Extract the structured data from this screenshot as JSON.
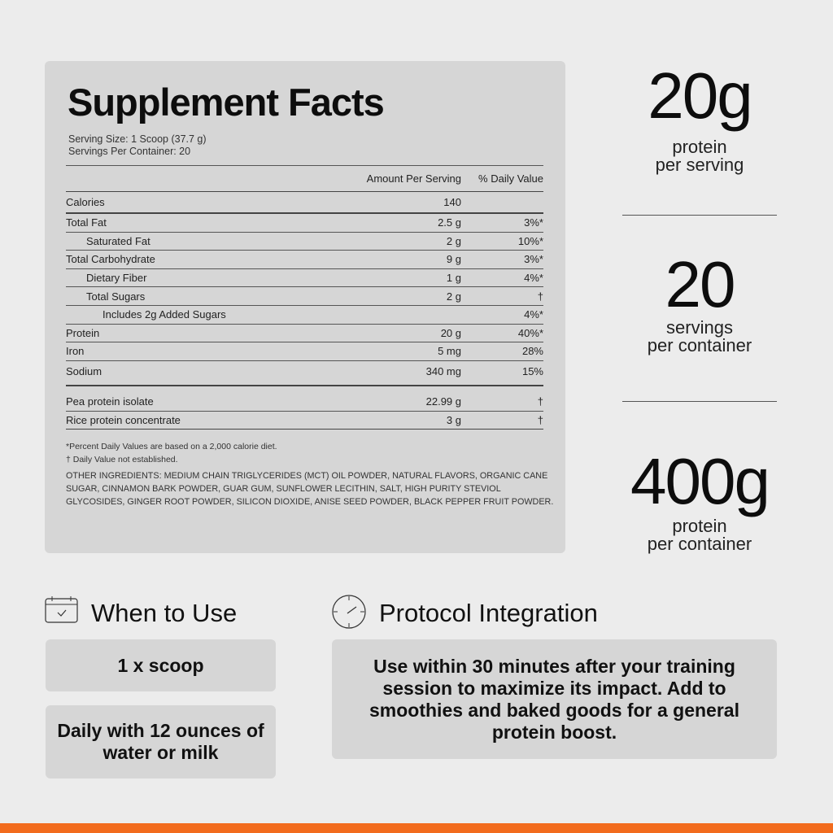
{
  "facts": {
    "title": "Supplement Facts",
    "serving_size": "Serving Size: 1 Scoop (37.7 g)",
    "servings_per_container": "Servings Per Container: 20",
    "col_amount": "Amount Per Serving",
    "col_dv": "% Daily Value",
    "rows": [
      {
        "label": "Calories",
        "amount": "140",
        "dv": ""
      },
      {
        "label": "Total Fat",
        "amount": "2.5 g",
        "dv": "3%*"
      },
      {
        "label": "Saturated Fat",
        "amount": "2 g",
        "dv": "10%*"
      },
      {
        "label": "Total Carbohydrate",
        "amount": "9 g",
        "dv": "3%*"
      },
      {
        "label": "Dietary Fiber",
        "amount": "1 g",
        "dv": "4%*"
      },
      {
        "label": "Total Sugars",
        "amount": "2 g",
        "dv": "†"
      },
      {
        "label": "Includes 2g Added Sugars",
        "amount": "",
        "dv": "4%*"
      },
      {
        "label": "Protein",
        "amount": "20 g",
        "dv": "40%*"
      },
      {
        "label": "Iron",
        "amount": "5 mg",
        "dv": "28%"
      },
      {
        "label": "Sodium",
        "amount": "340 mg",
        "dv": "15%"
      },
      {
        "label": "Pea protein isolate",
        "amount": "22.99 g",
        "dv": "†"
      },
      {
        "label": "Rice protein concentrate",
        "amount": "3 g",
        "dv": "†"
      }
    ],
    "footnote1": "*Percent Daily Values are based on a 2,000 calorie diet.",
    "footnote2": "† Daily Value not established.",
    "other_ingredients": "OTHER INGREDIENTS: MEDIUM CHAIN TRIGLYCERIDES (MCT) OIL POWDER, NATURAL FLAVORS, ORGANIC CANE SUGAR, CINNAMON BARK POWDER, GUAR GUM, SUNFLOWER LECITHIN, SALT, HIGH PURITY STEVIOL GLYCOSIDES, GINGER ROOT POWDER, SILICON DIOXIDE, ANISE SEED POWDER, BLACK PEPPER FRUIT POWDER."
  },
  "stats": [
    {
      "value": "20g",
      "line1": "protein",
      "line2": "per serving"
    },
    {
      "value": "20",
      "line1": "servings",
      "line2": "per container"
    },
    {
      "value": "400g",
      "line1": "protein",
      "line2": "per container"
    }
  ],
  "when": {
    "icon": "calendar-check-icon",
    "title": "When to Use",
    "box1": "1 x scoop",
    "box2": "Daily with 12 ounces of water or milk"
  },
  "protocol": {
    "icon": "clock-icon",
    "title": "Protocol Integration",
    "text": "Use within 30 minutes after your training session to maximize its impact. Add to smoothies and baked goods for a general protein boost."
  },
  "colors": {
    "accent": "#f26b1d",
    "card": "#d6d6d6",
    "background": "#ececec"
  }
}
